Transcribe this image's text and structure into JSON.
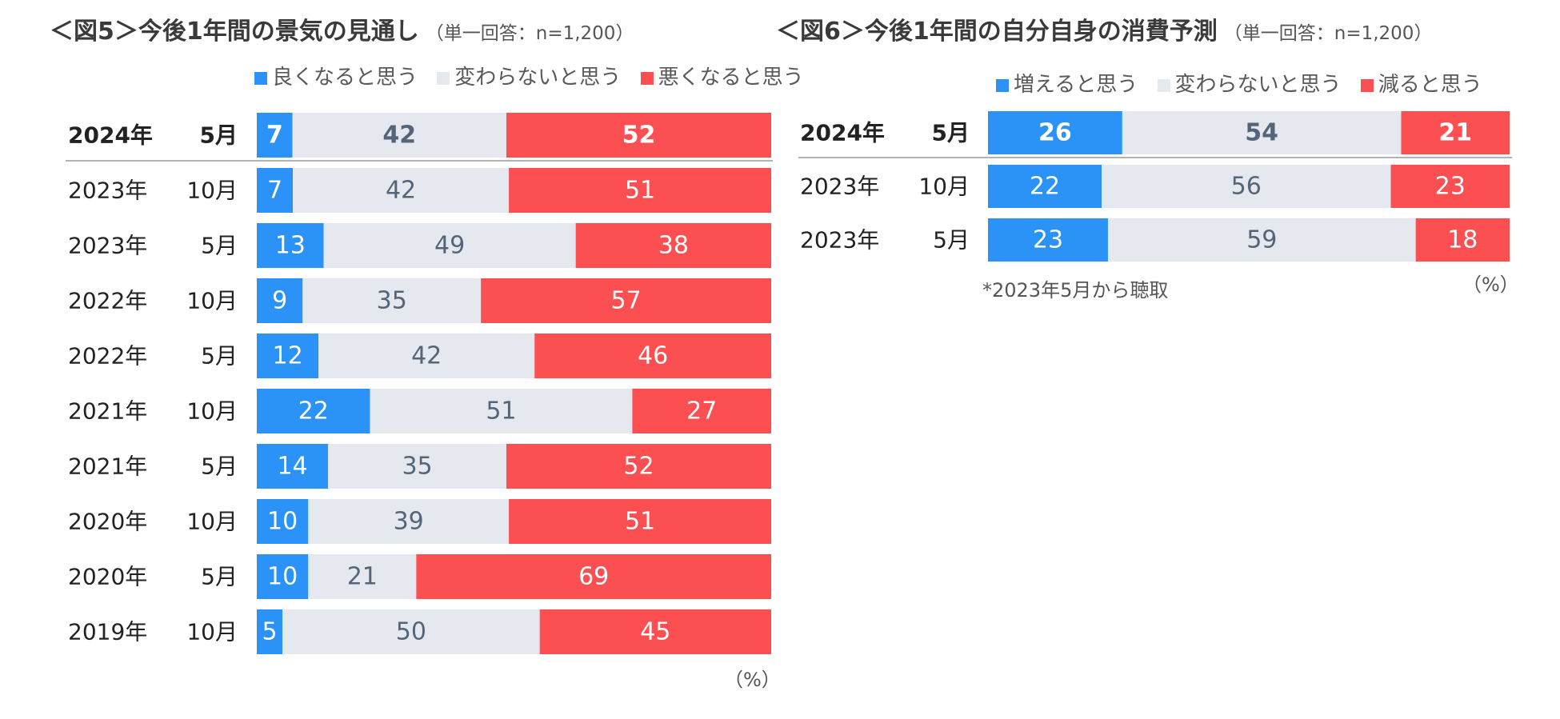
{
  "chart_data": [
    {
      "type": "bar",
      "orientation": "horizontal",
      "stacked": true,
      "title": "＜図5＞今後1年間の景気の見通し",
      "subtitle": "（単一回答：n=1,200）",
      "unit_label": "（%）",
      "categories": [
        {
          "year": "2024年",
          "month": "5月"
        },
        {
          "year": "2023年",
          "month": "10月"
        },
        {
          "year": "2023年",
          "month": "5月"
        },
        {
          "year": "2022年",
          "month": "10月"
        },
        {
          "year": "2022年",
          "month": "5月"
        },
        {
          "year": "2021年",
          "month": "10月"
        },
        {
          "year": "2021年",
          "month": "5月"
        },
        {
          "year": "2020年",
          "month": "10月"
        },
        {
          "year": "2020年",
          "month": "5月"
        },
        {
          "year": "2019年",
          "month": "10月"
        }
      ],
      "highlight_index": 0,
      "series": [
        {
          "name": "良くなると思う",
          "color": "#2b93f7",
          "label_color": "#ffffff",
          "values": [
            7,
            7,
            13,
            9,
            12,
            22,
            14,
            10,
            10,
            5
          ]
        },
        {
          "name": "変わらないと思う",
          "color": "#e5e9ef",
          "label_color": "#546577",
          "values": [
            42,
            42,
            49,
            35,
            42,
            51,
            35,
            39,
            21,
            50
          ]
        },
        {
          "name": "悪くなると思う",
          "color": "#fc4f52",
          "label_color": "#ffffff",
          "values": [
            52,
            51,
            38,
            57,
            46,
            27,
            52,
            51,
            69,
            45
          ]
        }
      ]
    },
    {
      "type": "bar",
      "orientation": "horizontal",
      "stacked": true,
      "title": "＜図6＞今後1年間の自分自身の消費予測",
      "subtitle": "（単一回答：n=1,200）",
      "unit_label": "（%）",
      "note": "*2023年5月から聴取",
      "categories": [
        {
          "year": "2024年",
          "month": "5月"
        },
        {
          "year": "2023年",
          "month": "10月"
        },
        {
          "year": "2023年",
          "month": "5月"
        }
      ],
      "highlight_index": 0,
      "series": [
        {
          "name": "増えると思う",
          "color": "#2b93f7",
          "label_color": "#ffffff",
          "values": [
            26,
            22,
            23
          ]
        },
        {
          "name": "変わらないと思う",
          "color": "#e5e9ef",
          "label_color": "#546577",
          "values": [
            54,
            56,
            59
          ]
        },
        {
          "name": "減ると思う",
          "color": "#fc4f52",
          "label_color": "#ffffff",
          "values": [
            21,
            23,
            18
          ]
        }
      ]
    }
  ]
}
